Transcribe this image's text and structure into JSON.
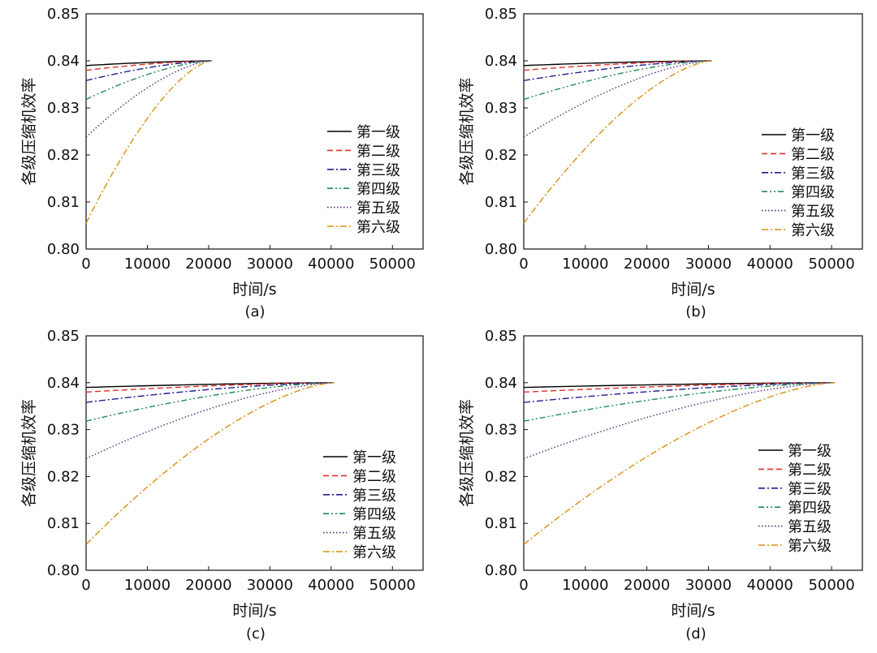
{
  "chart_data": [
    {
      "type": "line",
      "panel": "(a)",
      "xlabel": "时间/s",
      "ylabel": "各级压缩机效率",
      "xlim": [
        0,
        55000
      ],
      "ylim": [
        0.8,
        0.85
      ],
      "x_ticks": [
        "0",
        "10000",
        "20000",
        "30000",
        "40000",
        "50000"
      ],
      "y_ticks": [
        "0.80",
        "0.81",
        "0.82",
        "0.83",
        "0.84",
        "0.85"
      ],
      "grid": false,
      "legend_position": "right",
      "series": [
        {
          "name": "第一级",
          "color": "#000000",
          "dash": "solid",
          "x": [
            0,
            20500
          ],
          "y": [
            0.839,
            0.84
          ]
        },
        {
          "name": "第二级",
          "color": "#e0302a",
          "dash": "dashed",
          "x": [
            0,
            20500
          ],
          "y": [
            0.838,
            0.84
          ]
        },
        {
          "name": "第三级",
          "color": "#1f1f8f",
          "dash": "dashdot",
          "x": [
            0,
            20500
          ],
          "y": [
            0.8358,
            0.84
          ]
        },
        {
          "name": "第四级",
          "color": "#1e8a5a",
          "dash": "dashdotdot",
          "x": [
            0,
            20500
          ],
          "y": [
            0.8318,
            0.84
          ]
        },
        {
          "name": "第五级",
          "color": "#5a2a7a",
          "dash": "dotted",
          "x": [
            0,
            20500
          ],
          "y": [
            0.8238,
            0.84
          ]
        },
        {
          "name": "第六级",
          "color": "#d89010",
          "dash": "dashdot",
          "x": [
            0,
            20500
          ],
          "y": [
            0.8055,
            0.84
          ]
        }
      ]
    },
    {
      "type": "line",
      "panel": "(b)",
      "xlabel": "时间/s",
      "ylabel": "各级压缩机效率",
      "xlim": [
        0,
        55000
      ],
      "ylim": [
        0.8,
        0.85
      ],
      "x_ticks": [
        "0",
        "10000",
        "20000",
        "30000",
        "40000",
        "50000"
      ],
      "y_ticks": [
        "0.80",
        "0.81",
        "0.82",
        "0.83",
        "0.84",
        "0.85"
      ],
      "grid": false,
      "legend_position": "right",
      "series": [
        {
          "name": "第一级",
          "color": "#000000",
          "dash": "solid",
          "x": [
            0,
            30500
          ],
          "y": [
            0.839,
            0.84
          ]
        },
        {
          "name": "第二级",
          "color": "#e0302a",
          "dash": "dashed",
          "x": [
            0,
            30500
          ],
          "y": [
            0.838,
            0.84
          ]
        },
        {
          "name": "第三级",
          "color": "#1f1f8f",
          "dash": "dashdot",
          "x": [
            0,
            30500
          ],
          "y": [
            0.8358,
            0.84
          ]
        },
        {
          "name": "第四级",
          "color": "#1e8a5a",
          "dash": "dashdotdot",
          "x": [
            0,
            30500
          ],
          "y": [
            0.8318,
            0.84
          ]
        },
        {
          "name": "第五级",
          "color": "#5a2a7a",
          "dash": "dotted",
          "x": [
            0,
            30500
          ],
          "y": [
            0.8238,
            0.84
          ]
        },
        {
          "name": "第六级",
          "color": "#d89010",
          "dash": "dashdot",
          "x": [
            0,
            30500
          ],
          "y": [
            0.8055,
            0.84
          ]
        }
      ]
    },
    {
      "type": "line",
      "panel": "(c)",
      "xlabel": "时间/s",
      "ylabel": "各级压缩机效率",
      "xlim": [
        0,
        55000
      ],
      "ylim": [
        0.8,
        0.85
      ],
      "x_ticks": [
        "0",
        "10000",
        "20000",
        "30000",
        "40000",
        "50000"
      ],
      "y_ticks": [
        "0.80",
        "0.81",
        "0.82",
        "0.83",
        "0.84",
        "0.85"
      ],
      "grid": false,
      "legend_position": "right",
      "series": [
        {
          "name": "第一级",
          "color": "#000000",
          "dash": "solid",
          "x": [
            0,
            40500
          ],
          "y": [
            0.839,
            0.84
          ]
        },
        {
          "name": "第二级",
          "color": "#e0302a",
          "dash": "dashed",
          "x": [
            0,
            40500
          ],
          "y": [
            0.838,
            0.84
          ]
        },
        {
          "name": "第三级",
          "color": "#1f1f8f",
          "dash": "dashdot",
          "x": [
            0,
            40500
          ],
          "y": [
            0.8358,
            0.84
          ]
        },
        {
          "name": "第四级",
          "color": "#1e8a5a",
          "dash": "dashdotdot",
          "x": [
            0,
            40500
          ],
          "y": [
            0.8318,
            0.84
          ]
        },
        {
          "name": "第五级",
          "color": "#5a2a7a",
          "dash": "dotted",
          "x": [
            0,
            40500
          ],
          "y": [
            0.8238,
            0.84
          ]
        },
        {
          "name": "第六级",
          "color": "#d89010",
          "dash": "dashdot",
          "x": [
            0,
            40500
          ],
          "y": [
            0.8055,
            0.84
          ]
        }
      ]
    },
    {
      "type": "line",
      "panel": "(d)",
      "xlabel": "时间/s",
      "ylabel": "各级压缩机效率",
      "xlim": [
        0,
        55000
      ],
      "ylim": [
        0.8,
        0.85
      ],
      "x_ticks": [
        "0",
        "10000",
        "20000",
        "30000",
        "40000",
        "50000"
      ],
      "y_ticks": [
        "0.80",
        "0.81",
        "0.82",
        "0.83",
        "0.84",
        "0.85"
      ],
      "grid": false,
      "legend_position": "right",
      "series": [
        {
          "name": "第一级",
          "color": "#000000",
          "dash": "solid",
          "x": [
            0,
            50500
          ],
          "y": [
            0.839,
            0.84
          ]
        },
        {
          "name": "第二级",
          "color": "#e0302a",
          "dash": "dashed",
          "x": [
            0,
            50500
          ],
          "y": [
            0.838,
            0.84
          ]
        },
        {
          "name": "第三级",
          "color": "#1f1f8f",
          "dash": "dashdot",
          "x": [
            0,
            50500
          ],
          "y": [
            0.8358,
            0.84
          ]
        },
        {
          "name": "第四级",
          "color": "#1e8a5a",
          "dash": "dashdotdot",
          "x": [
            0,
            50500
          ],
          "y": [
            0.8318,
            0.84
          ]
        },
        {
          "name": "第五级",
          "color": "#5a2a7a",
          "dash": "dotted",
          "x": [
            0,
            50500
          ],
          "y": [
            0.8238,
            0.84
          ]
        },
        {
          "name": "第六级",
          "color": "#d89010",
          "dash": "dashdot",
          "x": [
            0,
            50500
          ],
          "y": [
            0.8055,
            0.84
          ]
        }
      ]
    }
  ]
}
